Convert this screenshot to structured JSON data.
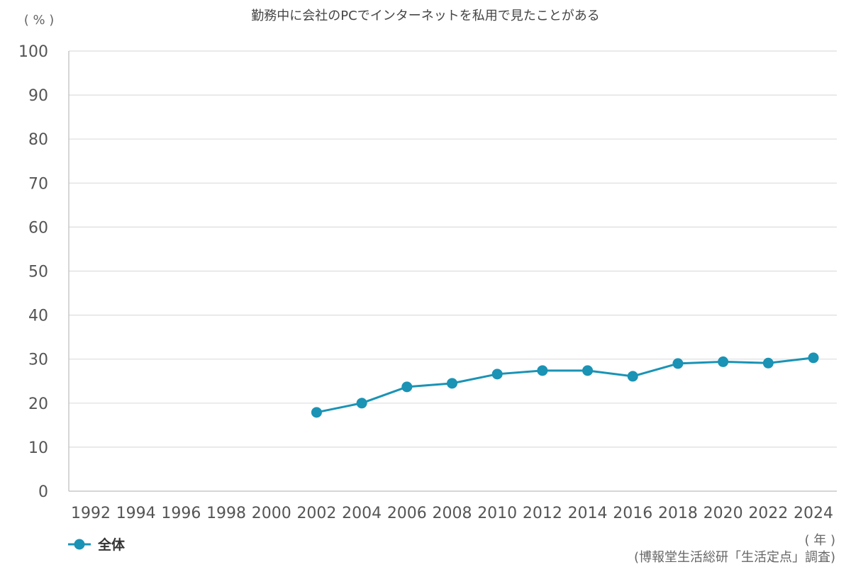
{
  "chart_data": {
    "type": "line",
    "title": "勤務中に会社のPCでインターネットを私用で見たことがある",
    "y_unit_label": "( % )",
    "x_unit_label": "( 年 )",
    "source": "(博報堂生活総研「生活定点」調査)",
    "ylim": [
      0,
      100
    ],
    "y_ticks": [
      0,
      10,
      20,
      30,
      40,
      50,
      60,
      70,
      80,
      90,
      100
    ],
    "x_ticks": [
      1992,
      1994,
      1996,
      1998,
      2000,
      2002,
      2004,
      2006,
      2008,
      2010,
      2012,
      2014,
      2016,
      2018,
      2020,
      2022,
      2024
    ],
    "grid": true,
    "legend_position": "bottom-left",
    "series": [
      {
        "name": "全体",
        "color": "#1a93b5",
        "x": [
          2002,
          2004,
          2006,
          2008,
          2010,
          2012,
          2014,
          2016,
          2018,
          2020,
          2022,
          2024
        ],
        "values": [
          17.9,
          20.0,
          23.7,
          24.5,
          26.6,
          27.4,
          27.4,
          26.1,
          29.0,
          29.4,
          29.1,
          30.3
        ]
      }
    ]
  }
}
